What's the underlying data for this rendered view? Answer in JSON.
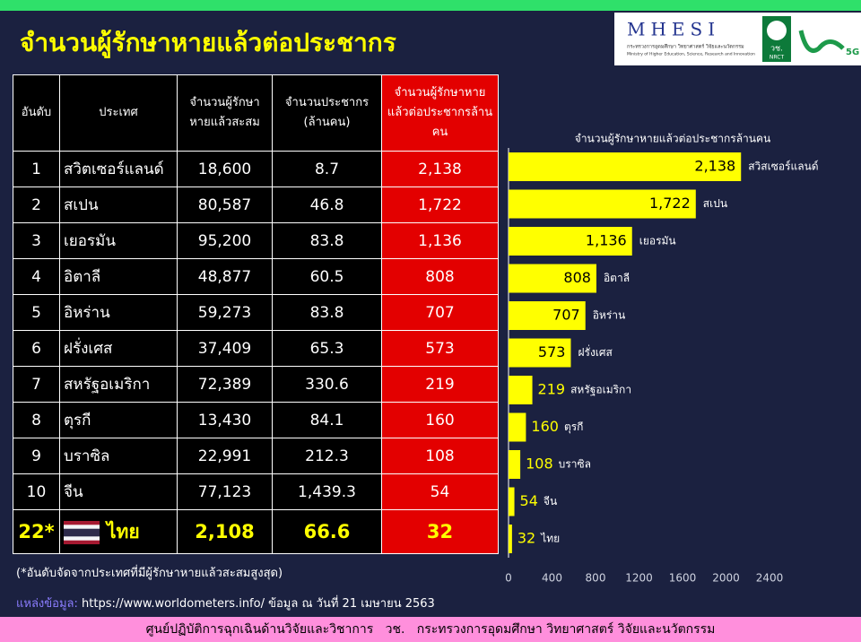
{
  "header": {
    "title": "จำนวนผู้รักษาหายแล้วต่อประชากร",
    "logos": {
      "mhesi": "MHESI",
      "ministry_th": "กระทรวงการอุดมศึกษา วิทยาศาสตร์ วิจัยและนวัตกรรม",
      "ministry_en": "Ministry of Higher Education, Science, Research and Innovation",
      "nrct_th": "วช.",
      "nrct_en": "NRCT",
      "g5": "5G"
    }
  },
  "table": {
    "columns": [
      "อันดับ",
      "ประเทศ",
      "จำนวนผู้รักษาหายแล้วสะสม",
      "จำนวนประชากร (ล้านคน)",
      "จำนวนผู้รักษาหายแล้วต่อประชากรล้านคน"
    ],
    "rows": [
      [
        "1",
        "สวิตเซอร์แลนด์",
        "18,600",
        "8.7",
        "2,138"
      ],
      [
        "2",
        "สเปน",
        "80,587",
        "46.8",
        "1,722"
      ],
      [
        "3",
        "เยอรมัน",
        "95,200",
        "83.8",
        "1,136"
      ],
      [
        "4",
        "อิตาลี",
        "48,877",
        "60.5",
        "808"
      ],
      [
        "5",
        "อิหร่าน",
        "59,273",
        "83.8",
        "707"
      ],
      [
        "6",
        "ฝรั่งเศส",
        "37,409",
        "65.3",
        "573"
      ],
      [
        "7",
        "สหรัฐอเมริกา",
        "72,389",
        "330.6",
        "219"
      ],
      [
        "8",
        "ตุรกี",
        "13,430",
        "84.1",
        "160"
      ],
      [
        "9",
        "บราซิล",
        "22,991",
        "212.3",
        "108"
      ],
      [
        "10",
        "จีน",
        "77,123",
        "1,439.3",
        "54"
      ],
      [
        "22*",
        "ไทย",
        "2,108",
        "66.6",
        "32"
      ]
    ],
    "note": "(*อันดับจัดจากประเทศที่มีผู้รักษาหายแล้วสะสมสูงสุด)"
  },
  "chart_data": {
    "type": "bar",
    "orientation": "horizontal",
    "title": "จำนวนผู้รักษาหายแล้วต่อประชากรล้านคน",
    "categories": [
      "สวิสเซอร์แลนด์",
      "สเปน",
      "เยอรมัน",
      "อิตาลี",
      "อิหร่าน",
      "ฝรั่งเศส",
      "สหรัฐอเมริกา",
      "ตุรกี",
      "บราซิล",
      "จีน",
      "ไทย"
    ],
    "values": [
      2138,
      1722,
      1136,
      808,
      707,
      573,
      219,
      160,
      108,
      54,
      32
    ],
    "value_labels": [
      "2,138",
      "1,722",
      "1,136",
      "808",
      "707",
      "573",
      "219",
      "160",
      "108",
      "54",
      "32"
    ],
    "color": "#ffff00",
    "xlim": [
      0,
      2400
    ],
    "xticks": [
      0,
      400,
      800,
      1200,
      1600,
      2000,
      2400
    ]
  },
  "source": {
    "label": "แหล่งข้อมูล:",
    "text": "https://www.worldometers.info/ ข้อมูล ณ วันที่ 21 เมษายน 2563"
  },
  "footer": "ศูนย์ปฏิบัติการฉุกเฉินด้านวิจัยและวิชาการ   วช.   กระทรวงการอุดมศึกษา วิทยาศาสตร์ วิจัยและนวัตกรรม"
}
